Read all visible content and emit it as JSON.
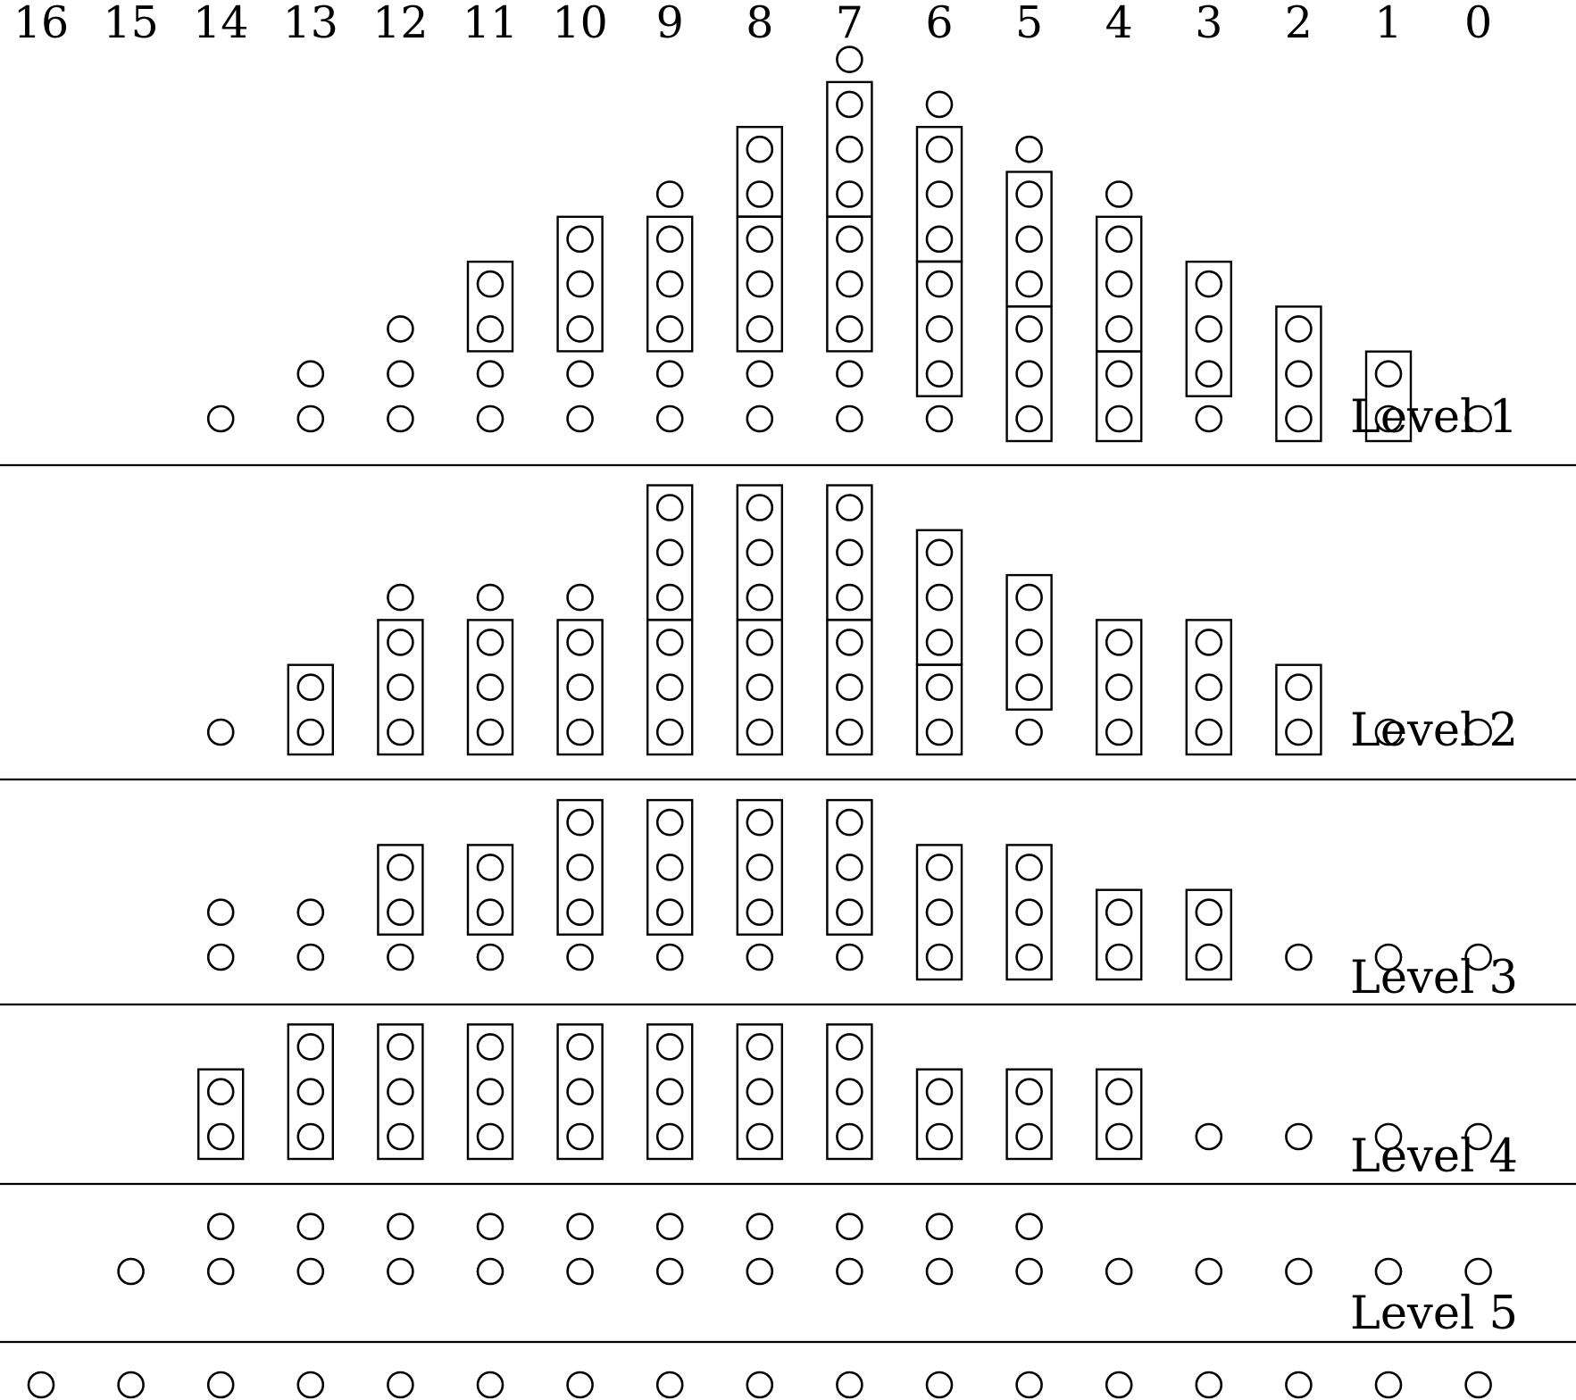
{
  "columns": [
    "16",
    "15",
    "14",
    "13",
    "12",
    "11",
    "10",
    "9",
    "8",
    "7",
    "6",
    "5",
    "4",
    "3",
    "2",
    "1",
    "0"
  ],
  "levels": [
    {
      "label": "Level 1",
      "dot_counts": [
        0,
        0,
        1,
        2,
        3,
        4,
        5,
        6,
        7,
        9,
        8,
        7,
        6,
        4,
        3,
        2,
        1
      ],
      "groups": [
        {
          "column": "11",
          "start": 2,
          "size": 2
        },
        {
          "column": "10",
          "start": 2,
          "size": 3
        },
        {
          "column": "9",
          "start": 2,
          "size": 3
        },
        {
          "column": "8",
          "start": 2,
          "size": 3
        },
        {
          "column": "8",
          "start": 5,
          "size": 2
        },
        {
          "column": "7",
          "start": 2,
          "size": 3
        },
        {
          "column": "7",
          "start": 5,
          "size": 3
        },
        {
          "column": "6",
          "start": 1,
          "size": 3
        },
        {
          "column": "6",
          "start": 4,
          "size": 3
        },
        {
          "column": "5",
          "start": 0,
          "size": 3
        },
        {
          "column": "5",
          "start": 3,
          "size": 3
        },
        {
          "column": "4",
          "start": 0,
          "size": 2
        },
        {
          "column": "4",
          "start": 2,
          "size": 3
        },
        {
          "column": "3",
          "start": 1,
          "size": 3
        },
        {
          "column": "2",
          "start": 0,
          "size": 3
        },
        {
          "column": "1",
          "start": 0,
          "size": 2
        }
      ]
    },
    {
      "label": "Level 2",
      "dot_counts": [
        0,
        0,
        1,
        2,
        4,
        4,
        4,
        6,
        6,
        6,
        5,
        4,
        3,
        3,
        2,
        1,
        1
      ],
      "groups": [
        {
          "column": "13",
          "start": 0,
          "size": 2
        },
        {
          "column": "12",
          "start": 0,
          "size": 3
        },
        {
          "column": "11",
          "start": 0,
          "size": 3
        },
        {
          "column": "10",
          "start": 0,
          "size": 3
        },
        {
          "column": "9",
          "start": 0,
          "size": 3
        },
        {
          "column": "9",
          "start": 3,
          "size": 3
        },
        {
          "column": "8",
          "start": 0,
          "size": 3
        },
        {
          "column": "8",
          "start": 3,
          "size": 3
        },
        {
          "column": "7",
          "start": 0,
          "size": 3
        },
        {
          "column": "7",
          "start": 3,
          "size": 3
        },
        {
          "column": "6",
          "start": 0,
          "size": 2
        },
        {
          "column": "6",
          "start": 2,
          "size": 3
        },
        {
          "column": "5",
          "start": 1,
          "size": 3
        },
        {
          "column": "4",
          "start": 0,
          "size": 3
        },
        {
          "column": "3",
          "start": 0,
          "size": 3
        },
        {
          "column": "2",
          "start": 0,
          "size": 2
        }
      ]
    },
    {
      "label": "Level 3",
      "dot_counts": [
        0,
        0,
        2,
        2,
        3,
        3,
        4,
        4,
        4,
        4,
        3,
        3,
        2,
        2,
        1,
        1,
        1
      ],
      "groups": [
        {
          "column": "12",
          "start": 1,
          "size": 2
        },
        {
          "column": "11",
          "start": 1,
          "size": 2
        },
        {
          "column": "10",
          "start": 1,
          "size": 3
        },
        {
          "column": "9",
          "start": 1,
          "size": 3
        },
        {
          "column": "8",
          "start": 1,
          "size": 3
        },
        {
          "column": "7",
          "start": 1,
          "size": 3
        },
        {
          "column": "6",
          "start": 0,
          "size": 3
        },
        {
          "column": "5",
          "start": 0,
          "size": 3
        },
        {
          "column": "4",
          "start": 0,
          "size": 2
        },
        {
          "column": "3",
          "start": 0,
          "size": 2
        }
      ]
    },
    {
      "label": "Level 4",
      "dot_counts": [
        0,
        0,
        2,
        3,
        3,
        3,
        3,
        3,
        3,
        3,
        2,
        2,
        2,
        1,
        1,
        1,
        1
      ],
      "groups": [
        {
          "column": "14",
          "start": 0,
          "size": 2
        },
        {
          "column": "13",
          "start": 0,
          "size": 3
        },
        {
          "column": "12",
          "start": 0,
          "size": 3
        },
        {
          "column": "11",
          "start": 0,
          "size": 3
        },
        {
          "column": "10",
          "start": 0,
          "size": 3
        },
        {
          "column": "9",
          "start": 0,
          "size": 3
        },
        {
          "column": "8",
          "start": 0,
          "size": 3
        },
        {
          "column": "7",
          "start": 0,
          "size": 3
        },
        {
          "column": "6",
          "start": 0,
          "size": 2
        },
        {
          "column": "5",
          "start": 0,
          "size": 2
        },
        {
          "column": "4",
          "start": 0,
          "size": 2
        }
      ]
    },
    {
      "label": "Level 5",
      "dot_counts": [
        0,
        1,
        2,
        2,
        2,
        2,
        2,
        2,
        2,
        2,
        2,
        2,
        1,
        1,
        1,
        1,
        1
      ],
      "groups": []
    },
    {
      "label": "",
      "dot_counts": [
        1,
        1,
        1,
        1,
        1,
        1,
        1,
        1,
        1,
        1,
        1,
        1,
        1,
        1,
        1,
        1,
        1
      ],
      "groups": []
    }
  ]
}
